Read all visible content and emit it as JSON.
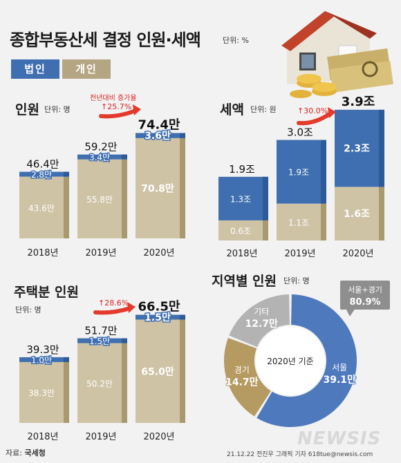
{
  "header": {
    "title": "종합부동산세 결정 인원·세액",
    "unit": "단위: %",
    "legend": [
      {
        "label": "법인",
        "color": "#3f6fb0"
      },
      {
        "label": "개인",
        "color": "#b5a683"
      }
    ]
  },
  "footer": {
    "source_prefix": "자료: ",
    "source": "국세청",
    "credit": "21.12.22 전진우 그래픽 기자 618tue@newsis.com",
    "watermark": "NEWSIS"
  },
  "colors": {
    "corporate": "#3f6fb0",
    "corporate_top": "#2d5a99",
    "individual": "#cfc3a6",
    "individual_side": "#a8996f"
  },
  "chart_data": [
    {
      "id": "people",
      "type": "bar",
      "title": "인원",
      "unit": "단위: 명",
      "categories": [
        "2018년",
        "2019년",
        "2020년"
      ],
      "series": [
        {
          "name": "법인",
          "values": [
            2.8,
            3.4,
            3.6
          ]
        },
        {
          "name": "개인",
          "values": [
            43.6,
            55.8,
            70.8
          ]
        }
      ],
      "value_labels": {
        "법인": [
          "2.8만",
          "3.4만",
          "3.6만"
        ],
        "개인": [
          "43.6만",
          "55.8만",
          "70.8만"
        ]
      },
      "totals": [
        "46.4만",
        "59.2만",
        "74.4만"
      ],
      "growth_caption": "전년대비 증가율",
      "growth": "↑25.7%"
    },
    {
      "id": "tax",
      "type": "bar",
      "title": "세액",
      "unit": "단위: 원",
      "categories": [
        "2018년",
        "2019년",
        "2020년"
      ],
      "series": [
        {
          "name": "법인",
          "values": [
            1.3,
            1.9,
            2.3
          ]
        },
        {
          "name": "개인",
          "values": [
            0.6,
            1.1,
            1.6
          ]
        }
      ],
      "value_labels": {
        "법인": [
          "1.3조",
          "1.9조",
          "2.3조"
        ],
        "개인": [
          "0.6조",
          "1.1조",
          "1.6조"
        ]
      },
      "totals": [
        "1.9조",
        "3.0조",
        "3.9조"
      ],
      "growth": "↑30.0%"
    },
    {
      "id": "housing",
      "type": "bar",
      "title": "주택분 인원",
      "unit": "단위: 명",
      "categories": [
        "2018년",
        "2019년",
        "2020년"
      ],
      "series": [
        {
          "name": "법인",
          "values": [
            1.0,
            1.5,
            1.5
          ]
        },
        {
          "name": "개인",
          "values": [
            38.3,
            50.2,
            65.0
          ]
        }
      ],
      "value_labels": {
        "법인": [
          "1.0만",
          "1.5만",
          "1.5만"
        ],
        "개인": [
          "38.3만",
          "50.2만",
          "65.0만"
        ]
      },
      "totals": [
        "39.3만",
        "51.7만",
        "66.5만"
      ],
      "growth": "↑28.6%"
    },
    {
      "id": "region",
      "type": "pie",
      "title": "지역별 인원",
      "unit": "단위: 명",
      "center_label": "2020년 기준",
      "slices": [
        {
          "name": "서울",
          "value": 39.1,
          "label": "39.1만",
          "color": "#4f79bd"
        },
        {
          "name": "경기",
          "value": 14.7,
          "label": "14.7만",
          "color": "#b59a62"
        },
        {
          "name": "기타",
          "value": 12.7,
          "label": "12.7만",
          "color": "#b3b3b3"
        }
      ],
      "callout": {
        "label": "서울+경기",
        "value": "80.9%"
      }
    }
  ]
}
